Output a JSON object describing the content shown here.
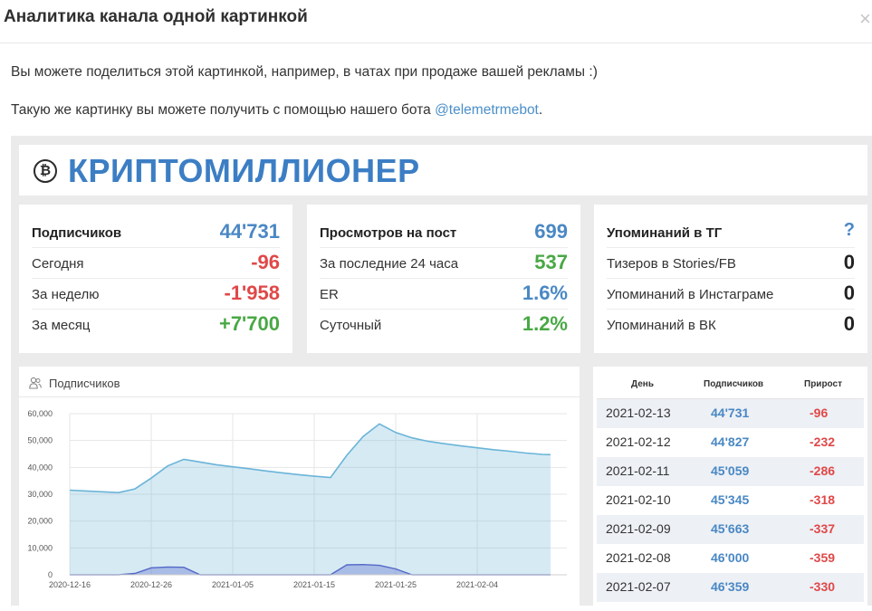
{
  "modal": {
    "title": "Аналитика канала одной картинкой",
    "close": "×"
  },
  "intro": {
    "line1": "Вы можете поделиться этой картинкой, например, в чатах при продаже вашей рекламы :)",
    "line2_prefix": "Такую же картинку вы можете получить с помощью нашего бота ",
    "line2_link": "@telemetrmebot",
    "line2_suffix": "."
  },
  "channel": {
    "name": "КРИПТОМИЛЛИОНЕР",
    "logo_icon": "bitcoin-icon"
  },
  "subscribers_card": {
    "rows": [
      {
        "label": "Подписчиков",
        "value": "44'731",
        "color": "#4a88c4"
      },
      {
        "label": "Сегодня",
        "value": "-96",
        "color": "#e04848"
      },
      {
        "label": "За неделю",
        "value": "-1'958",
        "color": "#e04848"
      },
      {
        "label": "За месяц",
        "value": "+7'700",
        "color": "#49a845"
      }
    ]
  },
  "views_card": {
    "rows": [
      {
        "label": "Просмотров на пост",
        "value": "699",
        "color": "#4a88c4"
      },
      {
        "label": "За последние 24 часа",
        "value": "537",
        "color": "#49a845"
      },
      {
        "label": "ER",
        "value": "1.6%",
        "color": "#4a88c4"
      },
      {
        "label": "Суточный",
        "value": "1.2%",
        "color": "#49a845"
      }
    ]
  },
  "mentions_card": {
    "rows": [
      {
        "label": "Упоминаний в ТГ",
        "value": "?",
        "color": "#4a88c4"
      },
      {
        "label": "Тизеров в Stories/FB",
        "value": "0",
        "color": "#222222"
      },
      {
        "label": "Упоминаний в Инстаграме",
        "value": "0",
        "color": "#222222"
      },
      {
        "label": "Упоминаний в ВК",
        "value": "0",
        "color": "#222222"
      }
    ]
  },
  "chart": {
    "title": "Подписчиков",
    "icon": "people-icon"
  },
  "chart_data": {
    "type": "area",
    "title": "Подписчиков",
    "ylim": [
      0,
      60000
    ],
    "y_ticks": [
      "0",
      "10,000",
      "20,000",
      "30,000",
      "40,000",
      "50,000",
      "60,000"
    ],
    "x_ticks": [
      "2020-12-16",
      "2020-12-26",
      "2021-01-05",
      "2021-01-15",
      "2021-01-25",
      "2021-02-04"
    ],
    "grid": true,
    "series": [
      {
        "color": "#6ab4d8",
        "x": [
          "2020-12-16",
          "2020-12-18",
          "2020-12-20",
          "2020-12-22",
          "2020-12-24",
          "2020-12-26",
          "2020-12-28",
          "2020-12-30",
          "2021-01-01",
          "2021-01-03",
          "2021-01-05",
          "2021-01-07",
          "2021-01-09",
          "2021-01-11",
          "2021-01-13",
          "2021-01-15",
          "2021-01-17",
          "2021-01-19",
          "2021-01-21",
          "2021-01-23",
          "2021-01-25",
          "2021-01-27",
          "2021-01-29",
          "2021-01-31",
          "2021-02-02",
          "2021-02-04",
          "2021-02-06",
          "2021-02-08",
          "2021-02-10",
          "2021-02-12",
          "2021-02-13"
        ],
        "values": [
          31500,
          31200,
          30900,
          30600,
          32000,
          36000,
          40500,
          43000,
          42000,
          41000,
          40200,
          39500,
          38700,
          38000,
          37300,
          36700,
          36200,
          44500,
          51500,
          56200,
          53000,
          51000,
          49700,
          48800,
          48000,
          47300,
          46600,
          46000,
          45345,
          44827,
          44731
        ]
      },
      {
        "color": "#5468c8",
        "x": [
          "2020-12-16",
          "2020-12-18",
          "2020-12-20",
          "2020-12-22",
          "2020-12-24",
          "2020-12-26",
          "2020-12-28",
          "2020-12-30",
          "2021-01-01",
          "2021-01-03",
          "2021-01-05",
          "2021-01-07",
          "2021-01-09",
          "2021-01-11",
          "2021-01-13",
          "2021-01-15",
          "2021-01-17",
          "2021-01-19",
          "2021-01-21",
          "2021-01-23",
          "2021-01-25",
          "2021-01-27",
          "2021-01-29",
          "2021-01-31",
          "2021-02-02",
          "2021-02-04",
          "2021-02-06",
          "2021-02-08",
          "2021-02-10",
          "2021-02-12",
          "2021-02-13"
        ],
        "values": [
          0,
          0,
          0,
          0,
          500,
          2600,
          2900,
          2800,
          0,
          0,
          0,
          0,
          0,
          0,
          0,
          0,
          0,
          3700,
          3800,
          3500,
          2200,
          0,
          0,
          0,
          0,
          0,
          0,
          0,
          0,
          0,
          0
        ]
      }
    ]
  },
  "table": {
    "headers": {
      "date": "День",
      "subs": "Подписчиков",
      "delta": "Прирост"
    },
    "rows": [
      {
        "date": "2021-02-13",
        "subs": "44'731",
        "delta": "-96"
      },
      {
        "date": "2021-02-12",
        "subs": "44'827",
        "delta": "-232"
      },
      {
        "date": "2021-02-11",
        "subs": "45'059",
        "delta": "-286"
      },
      {
        "date": "2021-02-10",
        "subs": "45'345",
        "delta": "-318"
      },
      {
        "date": "2021-02-09",
        "subs": "45'663",
        "delta": "-337"
      },
      {
        "date": "2021-02-08",
        "subs": "46'000",
        "delta": "-359"
      },
      {
        "date": "2021-02-07",
        "subs": "46'359",
        "delta": "-330"
      }
    ]
  }
}
